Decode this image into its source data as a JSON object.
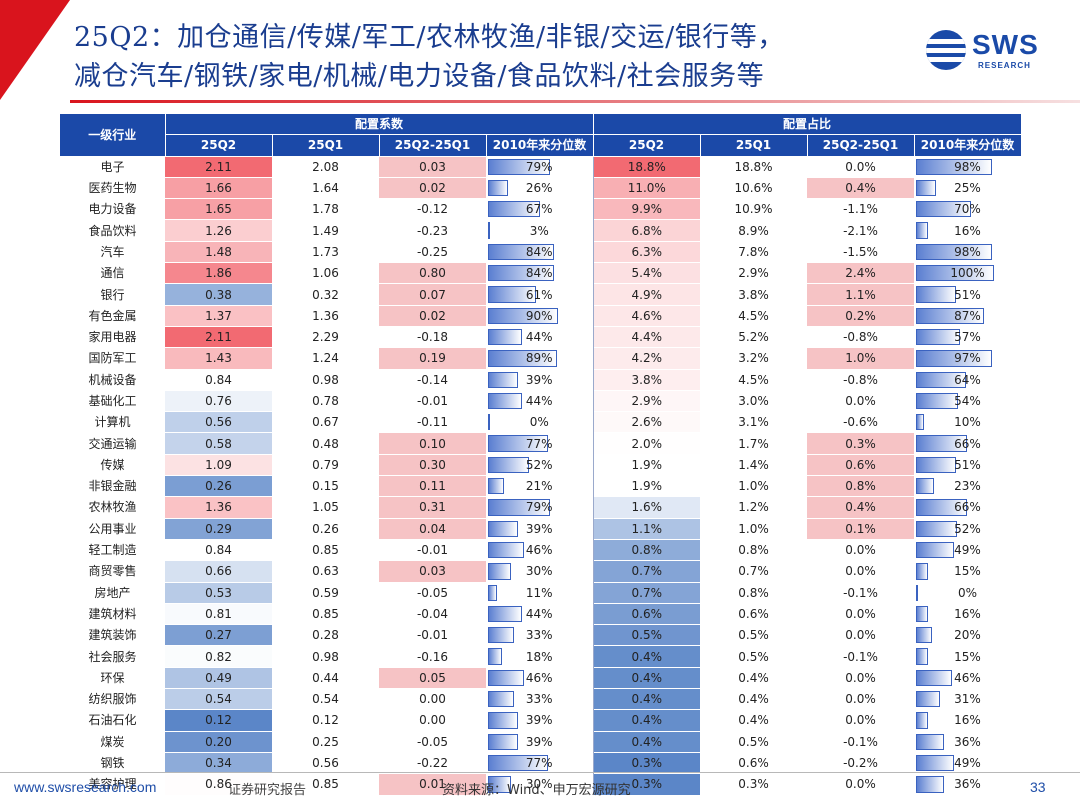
{
  "title": {
    "line1": "25Q2：加仓通信/传媒/军工/农林牧渔/非银/交运/银行等，",
    "line2": "减仓汽车/钢铁/家电/机械/电力设备/食品饮料/社会服务等"
  },
  "logo": {
    "text": "SWS",
    "sub": "RESEARCH"
  },
  "table": {
    "industry_header": "一级行业",
    "group_coef": "配置系数",
    "group_share": "配置占比",
    "sub_headers": [
      "25Q2",
      "25Q1",
      "25Q2-25Q1",
      "2010年来分位数"
    ],
    "rows": [
      {
        "name": "电子",
        "c1": "2.11",
        "c2": "2.08",
        "c3": "0.03",
        "c4": "79%",
        "s1": "18.8%",
        "s2": "18.8%",
        "s3": "0.0%",
        "s4": "98%"
      },
      {
        "name": "医药生物",
        "c1": "1.66",
        "c2": "1.64",
        "c3": "0.02",
        "c4": "26%",
        "s1": "11.0%",
        "s2": "10.6%",
        "s3": "0.4%",
        "s4": "25%"
      },
      {
        "name": "电力设备",
        "c1": "1.65",
        "c2": "1.78",
        "c3": "-0.12",
        "c4": "67%",
        "s1": "9.9%",
        "s2": "10.9%",
        "s3": "-1.1%",
        "s4": "70%"
      },
      {
        "name": "食品饮料",
        "c1": "1.26",
        "c2": "1.49",
        "c3": "-0.23",
        "c4": "3%",
        "s1": "6.8%",
        "s2": "8.9%",
        "s3": "-2.1%",
        "s4": "16%"
      },
      {
        "name": "汽车",
        "c1": "1.48",
        "c2": "1.73",
        "c3": "-0.25",
        "c4": "84%",
        "s1": "6.3%",
        "s2": "7.8%",
        "s3": "-1.5%",
        "s4": "98%"
      },
      {
        "name": "通信",
        "c1": "1.86",
        "c2": "1.06",
        "c3": "0.80",
        "c4": "84%",
        "s1": "5.4%",
        "s2": "2.9%",
        "s3": "2.4%",
        "s4": "100%"
      },
      {
        "name": "银行",
        "c1": "0.38",
        "c2": "0.32",
        "c3": "0.07",
        "c4": "61%",
        "s1": "4.9%",
        "s2": "3.8%",
        "s3": "1.1%",
        "s4": "51%"
      },
      {
        "name": "有色金属",
        "c1": "1.37",
        "c2": "1.36",
        "c3": "0.02",
        "c4": "90%",
        "s1": "4.6%",
        "s2": "4.5%",
        "s3": "0.2%",
        "s4": "87%"
      },
      {
        "name": "家用电器",
        "c1": "2.11",
        "c2": "2.29",
        "c3": "-0.18",
        "c4": "44%",
        "s1": "4.4%",
        "s2": "5.2%",
        "s3": "-0.8%",
        "s4": "57%"
      },
      {
        "name": "国防军工",
        "c1": "1.43",
        "c2": "1.24",
        "c3": "0.19",
        "c4": "89%",
        "s1": "4.2%",
        "s2": "3.2%",
        "s3": "1.0%",
        "s4": "97%"
      },
      {
        "name": "机械设备",
        "c1": "0.84",
        "c2": "0.98",
        "c3": "-0.14",
        "c4": "39%",
        "s1": "3.8%",
        "s2": "4.5%",
        "s3": "-0.8%",
        "s4": "64%"
      },
      {
        "name": "基础化工",
        "c1": "0.76",
        "c2": "0.78",
        "c3": "-0.01",
        "c4": "44%",
        "s1": "2.9%",
        "s2": "3.0%",
        "s3": "0.0%",
        "s4": "54%"
      },
      {
        "name": "计算机",
        "c1": "0.56",
        "c2": "0.67",
        "c3": "-0.11",
        "c4": "0%",
        "s1": "2.6%",
        "s2": "3.1%",
        "s3": "-0.6%",
        "s4": "10%"
      },
      {
        "name": "交通运输",
        "c1": "0.58",
        "c2": "0.48",
        "c3": "0.10",
        "c4": "77%",
        "s1": "2.0%",
        "s2": "1.7%",
        "s3": "0.3%",
        "s4": "66%"
      },
      {
        "name": "传媒",
        "c1": "1.09",
        "c2": "0.79",
        "c3": "0.30",
        "c4": "52%",
        "s1": "1.9%",
        "s2": "1.4%",
        "s3": "0.6%",
        "s4": "51%"
      },
      {
        "name": "非银金融",
        "c1": "0.26",
        "c2": "0.15",
        "c3": "0.11",
        "c4": "21%",
        "s1": "1.9%",
        "s2": "1.0%",
        "s3": "0.8%",
        "s4": "23%"
      },
      {
        "name": "农林牧渔",
        "c1": "1.36",
        "c2": "1.05",
        "c3": "0.31",
        "c4": "79%",
        "s1": "1.6%",
        "s2": "1.2%",
        "s3": "0.4%",
        "s4": "66%"
      },
      {
        "name": "公用事业",
        "c1": "0.29",
        "c2": "0.26",
        "c3": "0.04",
        "c4": "39%",
        "s1": "1.1%",
        "s2": "1.0%",
        "s3": "0.1%",
        "s4": "52%"
      },
      {
        "name": "轻工制造",
        "c1": "0.84",
        "c2": "0.85",
        "c3": "-0.01",
        "c4": "46%",
        "s1": "0.8%",
        "s2": "0.8%",
        "s3": "0.0%",
        "s4": "49%"
      },
      {
        "name": "商贸零售",
        "c1": "0.66",
        "c2": "0.63",
        "c3": "0.03",
        "c4": "30%",
        "s1": "0.7%",
        "s2": "0.7%",
        "s3": "0.0%",
        "s4": "15%"
      },
      {
        "name": "房地产",
        "c1": "0.53",
        "c2": "0.59",
        "c3": "-0.05",
        "c4": "11%",
        "s1": "0.7%",
        "s2": "0.8%",
        "s3": "-0.1%",
        "s4": "0%"
      },
      {
        "name": "建筑材料",
        "c1": "0.81",
        "c2": "0.85",
        "c3": "-0.04",
        "c4": "44%",
        "s1": "0.6%",
        "s2": "0.6%",
        "s3": "0.0%",
        "s4": "16%"
      },
      {
        "name": "建筑装饰",
        "c1": "0.27",
        "c2": "0.28",
        "c3": "-0.01",
        "c4": "33%",
        "s1": "0.5%",
        "s2": "0.5%",
        "s3": "0.0%",
        "s4": "20%"
      },
      {
        "name": "社会服务",
        "c1": "0.82",
        "c2": "0.98",
        "c3": "-0.16",
        "c4": "18%",
        "s1": "0.4%",
        "s2": "0.5%",
        "s3": "-0.1%",
        "s4": "15%"
      },
      {
        "name": "环保",
        "c1": "0.49",
        "c2": "0.44",
        "c3": "0.05",
        "c4": "46%",
        "s1": "0.4%",
        "s2": "0.4%",
        "s3": "0.0%",
        "s4": "46%"
      },
      {
        "name": "纺织服饰",
        "c1": "0.54",
        "c2": "0.54",
        "c3": "0.00",
        "c4": "33%",
        "s1": "0.4%",
        "s2": "0.4%",
        "s3": "0.0%",
        "s4": "31%"
      },
      {
        "name": "石油石化",
        "c1": "0.12",
        "c2": "0.12",
        "c3": "0.00",
        "c4": "39%",
        "s1": "0.4%",
        "s2": "0.4%",
        "s3": "0.0%",
        "s4": "16%"
      },
      {
        "name": "煤炭",
        "c1": "0.20",
        "c2": "0.25",
        "c3": "-0.05",
        "c4": "39%",
        "s1": "0.4%",
        "s2": "0.5%",
        "s3": "-0.1%",
        "s4": "36%"
      },
      {
        "name": "钢铁",
        "c1": "0.34",
        "c2": "0.56",
        "c3": "-0.22",
        "c4": "77%",
        "s1": "0.3%",
        "s2": "0.6%",
        "s3": "-0.2%",
        "s4": "49%"
      },
      {
        "name": "美容护理",
        "c1": "0.86",
        "c2": "0.85",
        "c3": "0.01",
        "c4": "30%",
        "s1": "0.3%",
        "s2": "0.3%",
        "s3": "0.0%",
        "s4": "36%"
      }
    ]
  },
  "colors": {
    "header_bg": "#1b49a8",
    "high": "#f26a72",
    "mid": "#ffffff",
    "low": "#5b86c8",
    "pos_delta": "#f6c3c5",
    "bar": "#5b7fd1"
  },
  "footer": {
    "website": "www.swsresearch.com",
    "label": "证券研究报告",
    "source": "资料来源：Wind、申万宏源研究",
    "page": "33"
  }
}
